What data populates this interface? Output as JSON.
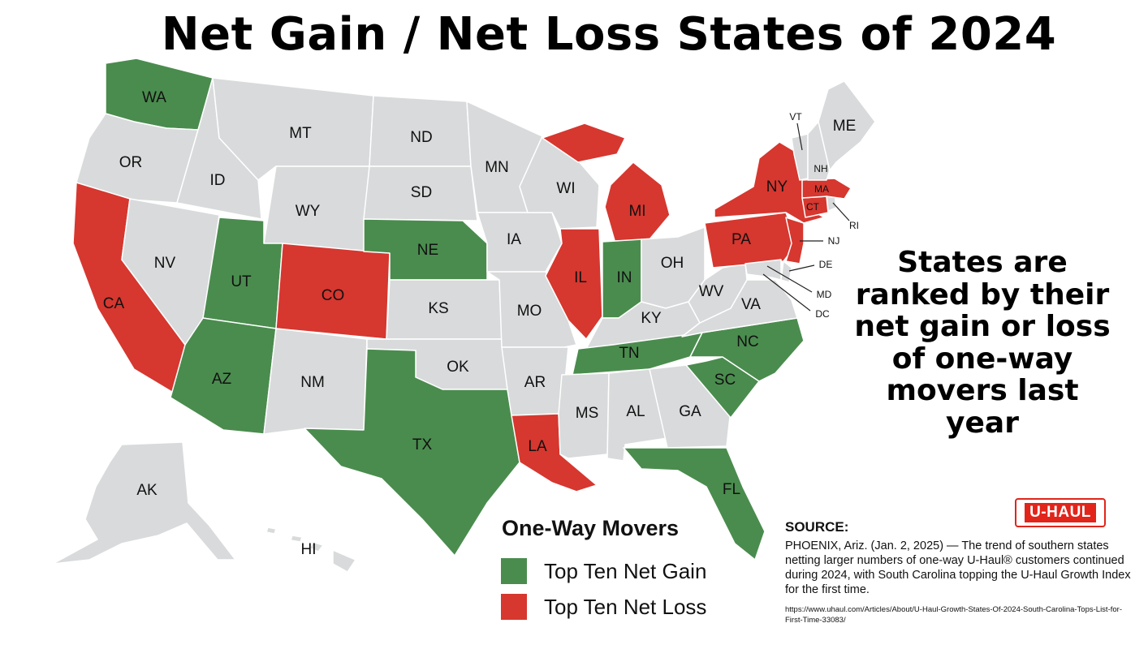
{
  "title": "Net Gain / Net Loss States of 2024",
  "side_note": "States are ranked by their net gain or loss of one-way movers last year",
  "colors": {
    "gain": "#4a8c4e",
    "loss": "#d6372f",
    "neutral": "#d8dadb",
    "logo": "#e1251b"
  },
  "legend": {
    "title": "One-Way Movers",
    "items": [
      {
        "label": "Top Ten Net Gain",
        "category": "gain"
      },
      {
        "label": "Top Ten Net Loss",
        "category": "loss"
      }
    ]
  },
  "logo": {
    "text": "U-HAUL"
  },
  "source": {
    "heading": "SOURCE:",
    "body": "PHOENIX, Ariz. (Jan. 2, 2025) — The trend of southern states netting larger numbers of one-way U-Haul® customers continued during 2024, with South Carolina topping the U-Haul Growth Index for the first time.",
    "url": "https://www.uhaul.com/Articles/About/U-Haul-Growth-States-Of-2024-South-Carolina-Tops-List-for-First-Time-33083/"
  },
  "states": [
    {
      "abbr": "WA",
      "category": "gain"
    },
    {
      "abbr": "OR",
      "category": "neutral"
    },
    {
      "abbr": "CA",
      "category": "loss"
    },
    {
      "abbr": "ID",
      "category": "neutral"
    },
    {
      "abbr": "NV",
      "category": "neutral"
    },
    {
      "abbr": "MT",
      "category": "neutral"
    },
    {
      "abbr": "WY",
      "category": "neutral"
    },
    {
      "abbr": "UT",
      "category": "gain"
    },
    {
      "abbr": "AZ",
      "category": "gain"
    },
    {
      "abbr": "CO",
      "category": "loss"
    },
    {
      "abbr": "NM",
      "category": "neutral"
    },
    {
      "abbr": "ND",
      "category": "neutral"
    },
    {
      "abbr": "SD",
      "category": "neutral"
    },
    {
      "abbr": "NE",
      "category": "gain"
    },
    {
      "abbr": "KS",
      "category": "neutral"
    },
    {
      "abbr": "OK",
      "category": "neutral"
    },
    {
      "abbr": "TX",
      "category": "gain"
    },
    {
      "abbr": "MN",
      "category": "neutral"
    },
    {
      "abbr": "IA",
      "category": "neutral"
    },
    {
      "abbr": "MO",
      "category": "neutral"
    },
    {
      "abbr": "AR",
      "category": "neutral"
    },
    {
      "abbr": "LA",
      "category": "loss"
    },
    {
      "abbr": "WI",
      "category": "neutral"
    },
    {
      "abbr": "IL",
      "category": "loss"
    },
    {
      "abbr": "MI",
      "category": "loss"
    },
    {
      "abbr": "IN",
      "category": "gain"
    },
    {
      "abbr": "OH",
      "category": "neutral"
    },
    {
      "abbr": "KY",
      "category": "neutral"
    },
    {
      "abbr": "TN",
      "category": "gain"
    },
    {
      "abbr": "MS",
      "category": "neutral"
    },
    {
      "abbr": "AL",
      "category": "neutral"
    },
    {
      "abbr": "GA",
      "category": "neutral"
    },
    {
      "abbr": "FL",
      "category": "gain"
    },
    {
      "abbr": "SC",
      "category": "gain"
    },
    {
      "abbr": "NC",
      "category": "gain"
    },
    {
      "abbr": "VA",
      "category": "neutral"
    },
    {
      "abbr": "WV",
      "category": "neutral"
    },
    {
      "abbr": "PA",
      "category": "loss"
    },
    {
      "abbr": "NY",
      "category": "loss"
    },
    {
      "abbr": "NJ",
      "category": "loss"
    },
    {
      "abbr": "DE",
      "category": "neutral"
    },
    {
      "abbr": "MD",
      "category": "neutral"
    },
    {
      "abbr": "DC",
      "category": "neutral"
    },
    {
      "abbr": "CT",
      "category": "loss"
    },
    {
      "abbr": "RI",
      "category": "neutral"
    },
    {
      "abbr": "MA",
      "category": "loss"
    },
    {
      "abbr": "VT",
      "category": "neutral"
    },
    {
      "abbr": "NH",
      "category": "neutral"
    },
    {
      "abbr": "ME",
      "category": "neutral"
    },
    {
      "abbr": "AK",
      "category": "neutral"
    },
    {
      "abbr": "HI",
      "category": "neutral"
    }
  ]
}
